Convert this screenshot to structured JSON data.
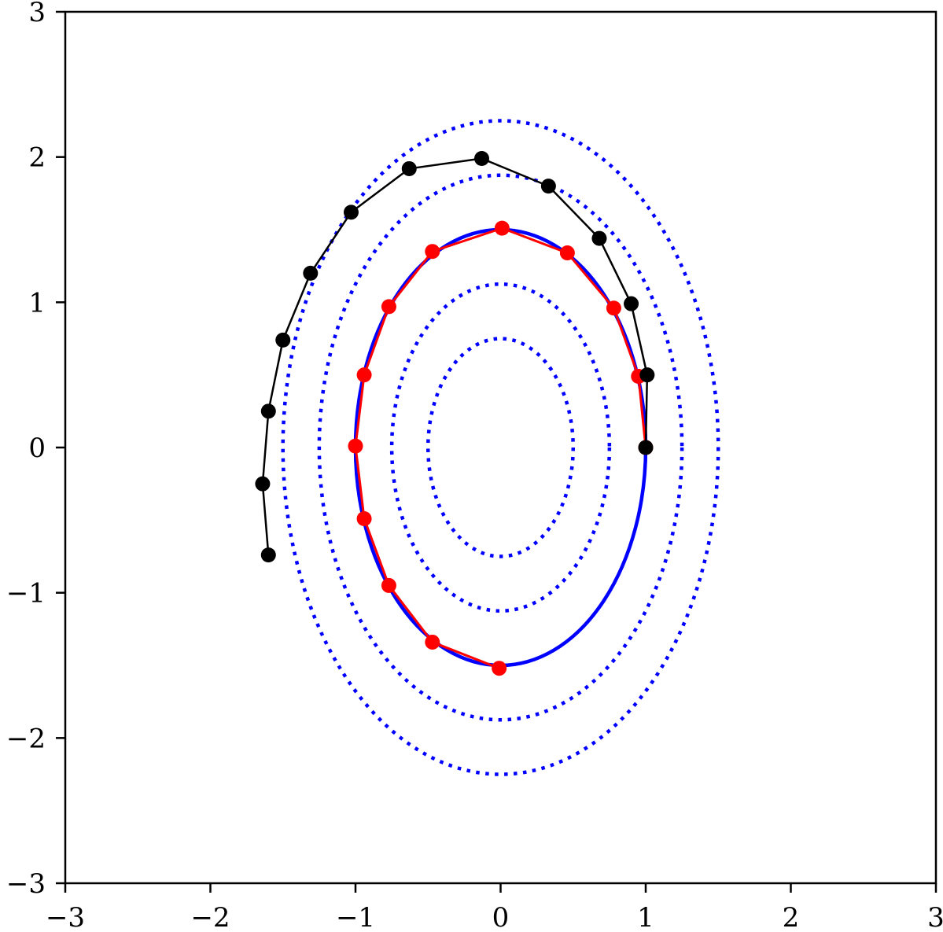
{
  "chart_data": {
    "type": "line",
    "title": "",
    "xlabel": "",
    "ylabel": "",
    "xlim": [
      -3,
      3
    ],
    "ylim": [
      -3,
      3
    ],
    "grid": false,
    "legend": "none",
    "x_ticks": [
      -3,
      -2,
      -1,
      0,
      1,
      2,
      3
    ],
    "y_ticks": [
      -3,
      -2,
      -1,
      0,
      1,
      2,
      3
    ],
    "x_tick_labels": [
      "−3",
      "−2",
      "−1",
      "0",
      "1",
      "2",
      "3"
    ],
    "y_tick_labels": [
      "−3",
      "−2",
      "−1",
      "0",
      "1",
      "2",
      "3"
    ],
    "contours": [
      {
        "kind": "dotted",
        "color": "#0000ff",
        "semi_x": 0.5,
        "semi_y": 0.75
      },
      {
        "kind": "dotted",
        "color": "#0000ff",
        "semi_x": 0.75,
        "semi_y": 1.125
      },
      {
        "kind": "solid",
        "color": "#0000ff",
        "semi_x": 1.0,
        "semi_y": 1.5
      },
      {
        "kind": "dotted",
        "color": "#0000ff",
        "semi_x": 1.25,
        "semi_y": 1.875
      },
      {
        "kind": "dotted",
        "color": "#0000ff",
        "semi_x": 1.5,
        "semi_y": 2.25
      }
    ],
    "series": [
      {
        "color": "#ff0000",
        "points": [
          [
            1.0,
            0.0
          ],
          [
            0.95,
            0.49
          ],
          [
            0.78,
            0.96
          ],
          [
            0.46,
            1.34
          ],
          [
            0.01,
            1.51
          ],
          [
            -0.47,
            1.35
          ],
          [
            -0.77,
            0.97
          ],
          [
            -0.94,
            0.5
          ],
          [
            -1.0,
            0.01
          ],
          [
            -0.94,
            -0.49
          ],
          [
            -0.77,
            -0.95
          ],
          [
            -0.47,
            -1.34
          ],
          [
            -0.01,
            -1.52
          ]
        ]
      },
      {
        "color": "#000000",
        "points": [
          [
            1.0,
            0.0
          ],
          [
            1.01,
            0.5
          ],
          [
            0.9,
            0.99
          ],
          [
            0.68,
            1.44
          ],
          [
            0.33,
            1.8
          ],
          [
            -0.13,
            1.99
          ],
          [
            -0.63,
            1.92
          ],
          [
            -1.03,
            1.62
          ],
          [
            -1.31,
            1.2
          ],
          [
            -1.5,
            0.74
          ],
          [
            -1.6,
            0.25
          ],
          [
            -1.64,
            -0.25
          ],
          [
            -1.6,
            -0.74
          ]
        ]
      }
    ]
  }
}
